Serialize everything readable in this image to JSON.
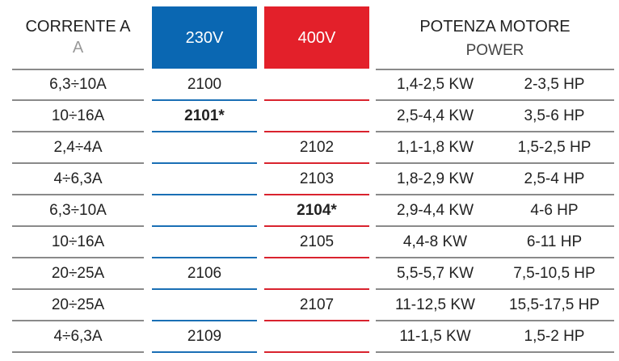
{
  "header": {
    "current": "CORRENTE A",
    "current_sub": "A",
    "v230": "230V",
    "v400": "400V",
    "power": "POTENZA MOTORE",
    "power_sub": "POWER"
  },
  "table": {
    "rows": [
      [
        "6,3÷10A",
        "2100",
        null,
        "1,4-2,5 KW",
        "2-3,5 HP"
      ],
      [
        "10÷16A",
        "2101*",
        null,
        "2,5-4,4 KW",
        "3,5-6 HP"
      ],
      [
        "2,4÷4A",
        null,
        "2102",
        "1,1-1,8 KW",
        "1,5-2,5 HP"
      ],
      [
        "4÷6,3A",
        null,
        "2103",
        "1,8-2,9 KW",
        "2,5-4 HP"
      ],
      [
        "6,3÷10A",
        null,
        "2104*",
        "2,9-4,4 KW",
        "4-6 HP"
      ],
      [
        "10÷16A",
        null,
        "2105",
        "4,4-8 KW",
        "6-11 HP"
      ],
      [
        "20÷25A",
        "2106",
        null,
        "5,5-5,7 KW",
        "7,5-10,5 HP"
      ],
      [
        "20÷25A",
        null,
        "2107",
        "11-12,5 KW",
        "15,5-17,5 HP"
      ],
      [
        "4÷6,3A",
        "2109",
        null,
        "11-1,5 KW",
        "1,5-2 HP"
      ]
    ]
  }
}
